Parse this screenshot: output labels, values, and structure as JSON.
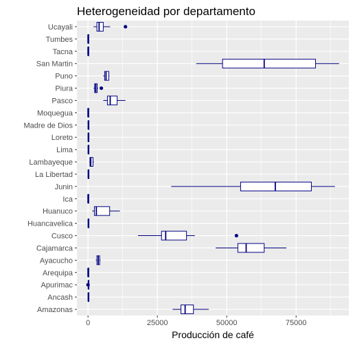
{
  "chart_data": {
    "type": "boxplot",
    "orientation": "horizontal",
    "title": "Heterogeneidad por departamento",
    "xlabel": "Producción de café",
    "ylabel": "",
    "xlim": [
      -4000,
      94000
    ],
    "xticks": [
      0,
      25000,
      50000,
      75000
    ],
    "xtick_labels": [
      "0",
      "25000",
      "50000",
      "75000"
    ],
    "grid": true,
    "legend": "none",
    "colors": {
      "box_stroke": "#000080",
      "panel_bg": "#ebebeb",
      "grid": "#ffffff",
      "box_fill": "#ffffff"
    },
    "categories": [
      "Ucayali",
      "Tumbes",
      "Tacna",
      "San Martin",
      "Puno",
      "Piura",
      "Pasco",
      "Moquegua",
      "Madre de Dios",
      "Loreto",
      "Lima",
      "Lambayeque",
      "La Libertad",
      "Junin",
      "Ica",
      "Huanuco",
      "Huancavelica",
      "Cusco",
      "Cajamarca",
      "Ayacucho",
      "Arequipa",
      "Apurimac",
      "Ancash",
      "Amazonas"
    ],
    "boxes": [
      {
        "name": "Ucayali",
        "min": 2000,
        "q1": 3200,
        "median": 4000,
        "q3": 5500,
        "max": 8000,
        "outliers": [
          13500
        ]
      },
      {
        "name": "Tumbes",
        "min": 0,
        "q1": 0,
        "median": 0,
        "q3": 50,
        "max": 100,
        "outliers": []
      },
      {
        "name": "Tacna",
        "min": 0,
        "q1": 0,
        "median": 0,
        "q3": 50,
        "max": 100,
        "outliers": []
      },
      {
        "name": "San Martin",
        "min": 39000,
        "q1": 48500,
        "median": 63500,
        "q3": 82000,
        "max": 90500,
        "outliers": []
      },
      {
        "name": "Puno",
        "min": 5500,
        "q1": 6000,
        "median": 6500,
        "q3": 7500,
        "max": 7700,
        "outliers": []
      },
      {
        "name": "Piura",
        "min": 2000,
        "q1": 2400,
        "median": 2800,
        "q3": 3300,
        "max": 3600,
        "outliers": [
          4800
        ]
      },
      {
        "name": "Pasco",
        "min": 5500,
        "q1": 7000,
        "median": 8000,
        "q3": 10500,
        "max": 13500,
        "outliers": []
      },
      {
        "name": "Moquegua",
        "min": 0,
        "q1": 0,
        "median": 0,
        "q3": 50,
        "max": 100,
        "outliers": []
      },
      {
        "name": "Madre de Dios",
        "min": 0,
        "q1": 50,
        "median": 100,
        "q3": 200,
        "max": 300,
        "outliers": []
      },
      {
        "name": "Loreto",
        "min": 0,
        "q1": 50,
        "median": 100,
        "q3": 200,
        "max": 300,
        "outliers": []
      },
      {
        "name": "Lima",
        "min": 0,
        "q1": 50,
        "median": 100,
        "q3": 200,
        "max": 300,
        "outliers": []
      },
      {
        "name": "Lambayeque",
        "min": 500,
        "q1": 700,
        "median": 1000,
        "q3": 1800,
        "max": 2100,
        "outliers": []
      },
      {
        "name": "La Libertad",
        "min": 0,
        "q1": 50,
        "median": 100,
        "q3": 200,
        "max": 300,
        "outliers": []
      },
      {
        "name": "Junin",
        "min": 30000,
        "q1": 55000,
        "median": 67500,
        "q3": 80500,
        "max": 89000,
        "outliers": []
      },
      {
        "name": "Ica",
        "min": 0,
        "q1": 0,
        "median": 0,
        "q3": 50,
        "max": 100,
        "outliers": []
      },
      {
        "name": "Huanuco",
        "min": 1500,
        "q1": 2300,
        "median": 3000,
        "q3": 7800,
        "max": 11500,
        "outliers": []
      },
      {
        "name": "Huancavelica",
        "min": 0,
        "q1": 50,
        "median": 100,
        "q3": 200,
        "max": 300,
        "outliers": []
      },
      {
        "name": "Cusco",
        "min": 18000,
        "q1": 26500,
        "median": 28000,
        "q3": 35500,
        "max": 38500,
        "outliers": [
          53500
        ]
      },
      {
        "name": "Cajamarca",
        "min": 46000,
        "q1": 54000,
        "median": 57000,
        "q3": 63500,
        "max": 71500,
        "outliers": []
      },
      {
        "name": "Ayacucho",
        "min": 2800,
        "q1": 3200,
        "median": 3700,
        "q3": 4200,
        "max": 4500,
        "outliers": []
      },
      {
        "name": "Arequipa",
        "min": 0,
        "q1": 0,
        "median": 0,
        "q3": 50,
        "max": 100,
        "outliers": []
      },
      {
        "name": "Apurimac",
        "min": 0,
        "q1": 50,
        "median": 150,
        "q3": 250,
        "max": 300,
        "outliers": [
          0
        ]
      },
      {
        "name": "Ancash",
        "min": 0,
        "q1": 50,
        "median": 100,
        "q3": 200,
        "max": 300,
        "outliers": []
      },
      {
        "name": "Amazonas",
        "min": 30500,
        "q1": 33500,
        "median": 35000,
        "q3": 38000,
        "max": 43500,
        "outliers": []
      }
    ]
  }
}
